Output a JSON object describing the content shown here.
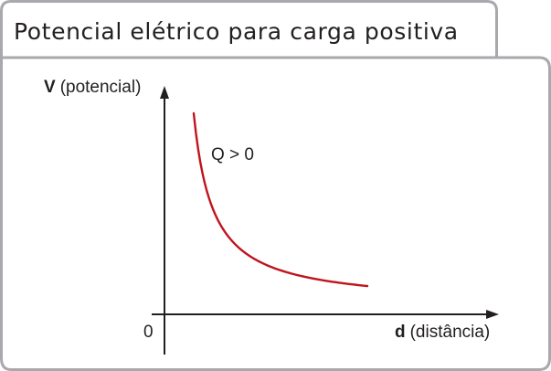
{
  "chart_data": {
    "type": "line",
    "title": "Potencial elétrico para carga positiva",
    "ylabel_symbol": "V",
    "ylabel": "(potencial)",
    "xlabel_symbol": "d",
    "xlabel": "(distância)",
    "origin_label": "0",
    "annotation": "Q > 0",
    "curve": "V ∝ 1/d",
    "series": [
      {
        "color": "#c0141c",
        "x": [
          1.0,
          1.5,
          2.0,
          3.0,
          4.0,
          5.0,
          6.0,
          7.0,
          8.0,
          9.0,
          10.0
        ],
        "y": [
          10.0,
          6.67,
          5.0,
          3.33,
          2.5,
          2.0,
          1.67,
          1.43,
          1.25,
          1.11,
          1.0
        ]
      }
    ],
    "colors": {
      "frame": "#a7a9ac",
      "axes": "#231f20",
      "curve": "#c0141c"
    }
  }
}
